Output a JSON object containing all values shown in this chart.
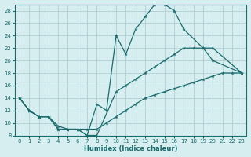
{
  "xlabel": "Humidex (Indice chaleur)",
  "bg_color": "#d6eef0",
  "grid_color": "#b0cfd4",
  "line_color": "#1a6b6b",
  "xlim": [
    -0.5,
    23.5
  ],
  "ylim": [
    8,
    29
  ],
  "xticks": [
    0,
    1,
    2,
    3,
    4,
    5,
    6,
    7,
    8,
    9,
    10,
    11,
    12,
    13,
    14,
    15,
    16,
    17,
    18,
    19,
    20,
    21,
    22,
    23
  ],
  "yticks": [
    8,
    10,
    12,
    14,
    16,
    18,
    20,
    22,
    24,
    26,
    28
  ],
  "c1x": [
    0,
    1,
    2,
    3,
    4,
    5,
    6,
    7,
    8,
    9,
    10,
    11,
    12,
    13,
    14,
    15,
    16,
    17,
    19,
    20,
    23
  ],
  "c1y": [
    14,
    12,
    11,
    11,
    9,
    9,
    9,
    8,
    13,
    12,
    24,
    21,
    25,
    27,
    29,
    29,
    28,
    25,
    22,
    20,
    18
  ],
  "c2x": [
    0,
    1,
    2,
    3,
    4,
    5,
    6,
    7,
    8,
    10,
    11,
    12,
    13,
    14,
    15,
    16,
    17,
    18,
    19,
    20,
    23
  ],
  "c2y": [
    14,
    12,
    11,
    11,
    9,
    9,
    9,
    8,
    8,
    15,
    16,
    17,
    18,
    19,
    20,
    21,
    22,
    22,
    22,
    22,
    18
  ],
  "c3x": [
    0,
    1,
    2,
    3,
    4,
    5,
    6,
    7,
    8,
    9,
    10,
    11,
    12,
    13,
    14,
    15,
    16,
    17,
    18,
    19,
    20,
    21,
    22,
    23
  ],
  "c3y": [
    14,
    12,
    11,
    11,
    9.5,
    9,
    9,
    9,
    9,
    10,
    11,
    12,
    13,
    14,
    14.5,
    15,
    15.5,
    16,
    16.5,
    17,
    17.5,
    18,
    18,
    18
  ]
}
